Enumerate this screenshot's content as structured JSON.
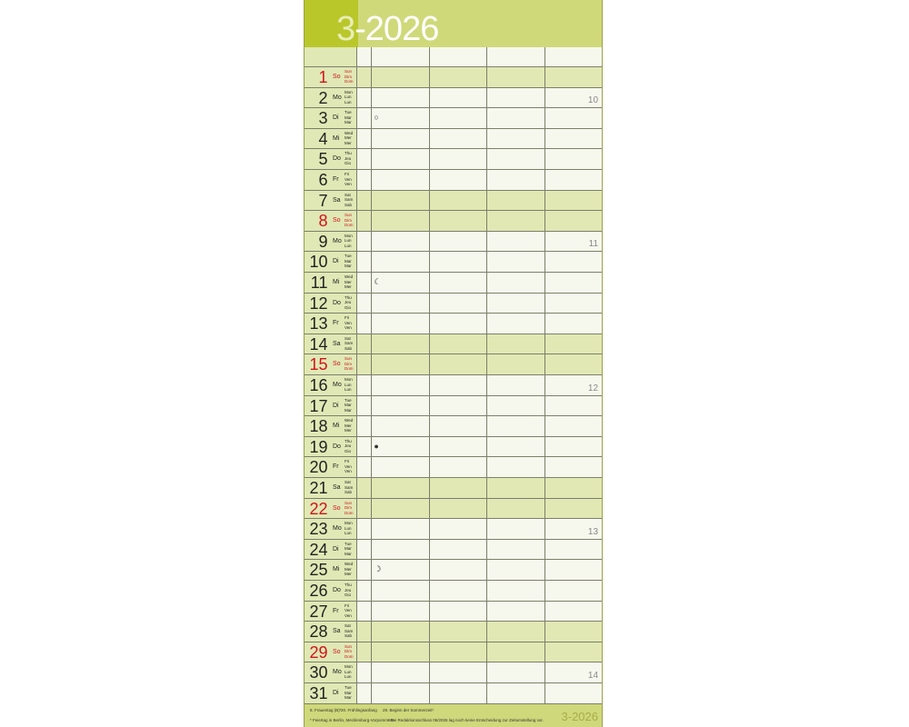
{
  "header": {
    "month": "3",
    "year": "-2026"
  },
  "weekday_names": {
    "So": [
      "Sun",
      "Dim",
      "Dom"
    ],
    "Mo": [
      "Mon",
      "Lun",
      "Lun"
    ],
    "Di": [
      "Tue",
      "Mar",
      "Mar"
    ],
    "Mi": [
      "Wed",
      "Mer",
      "Mer"
    ],
    "Do": [
      "Thu",
      "Jeu",
      "Gio"
    ],
    "Fr": [
      "Fri",
      "Ven",
      "Ven"
    ],
    "Sa": [
      "Sat",
      "Sam",
      "Sab"
    ]
  },
  "days": [
    {
      "d": "1",
      "wd": "So"
    },
    {
      "d": "2",
      "wd": "Mo",
      "week": "10"
    },
    {
      "d": "3",
      "wd": "Di",
      "moon": "○"
    },
    {
      "d": "4",
      "wd": "Mi"
    },
    {
      "d": "5",
      "wd": "Do"
    },
    {
      "d": "6",
      "wd": "Fr"
    },
    {
      "d": "7",
      "wd": "Sa"
    },
    {
      "d": "8",
      "wd": "So"
    },
    {
      "d": "9",
      "wd": "Mo",
      "week": "11"
    },
    {
      "d": "10",
      "wd": "Di"
    },
    {
      "d": "11",
      "wd": "Mi",
      "moon": "☾"
    },
    {
      "d": "12",
      "wd": "Do"
    },
    {
      "d": "13",
      "wd": "Fr"
    },
    {
      "d": "14",
      "wd": "Sa"
    },
    {
      "d": "15",
      "wd": "So"
    },
    {
      "d": "16",
      "wd": "Mo",
      "week": "12"
    },
    {
      "d": "17",
      "wd": "Di"
    },
    {
      "d": "18",
      "wd": "Mi"
    },
    {
      "d": "19",
      "wd": "Do",
      "moon": "●"
    },
    {
      "d": "20",
      "wd": "Fr"
    },
    {
      "d": "21",
      "wd": "Sa"
    },
    {
      "d": "22",
      "wd": "So"
    },
    {
      "d": "23",
      "wd": "Mo",
      "week": "13"
    },
    {
      "d": "24",
      "wd": "Di"
    },
    {
      "d": "25",
      "wd": "Mi",
      "moon": "☽"
    },
    {
      "d": "26",
      "wd": "Do"
    },
    {
      "d": "27",
      "wd": "Fr"
    },
    {
      "d": "28",
      "wd": "Sa"
    },
    {
      "d": "29",
      "wd": "So"
    },
    {
      "d": "30",
      "wd": "Mo",
      "week": "14"
    },
    {
      "d": "31",
      "wd": "Di"
    }
  ],
  "footer": {
    "holidays": [
      "8. Frauentag (B)*",
      "20. Frühlingsanfang",
      "29. Beginn der Sommerzeit¹"
    ],
    "notes": [
      "* Feiertag in Berlin, Mecklenburg-Vorpommern",
      "¹ Bei Redaktionsschluss 06/2026 lag noch keine Entscheidung zur Zeitumstellung vor."
    ],
    "title": "3-2026"
  },
  "colors": {
    "header": "#d0d97a",
    "header_dark": "#bac72b",
    "weekend": "#e1e8b4",
    "weekday": "#f7f8ed",
    "sunday_text": "#d1131b"
  }
}
